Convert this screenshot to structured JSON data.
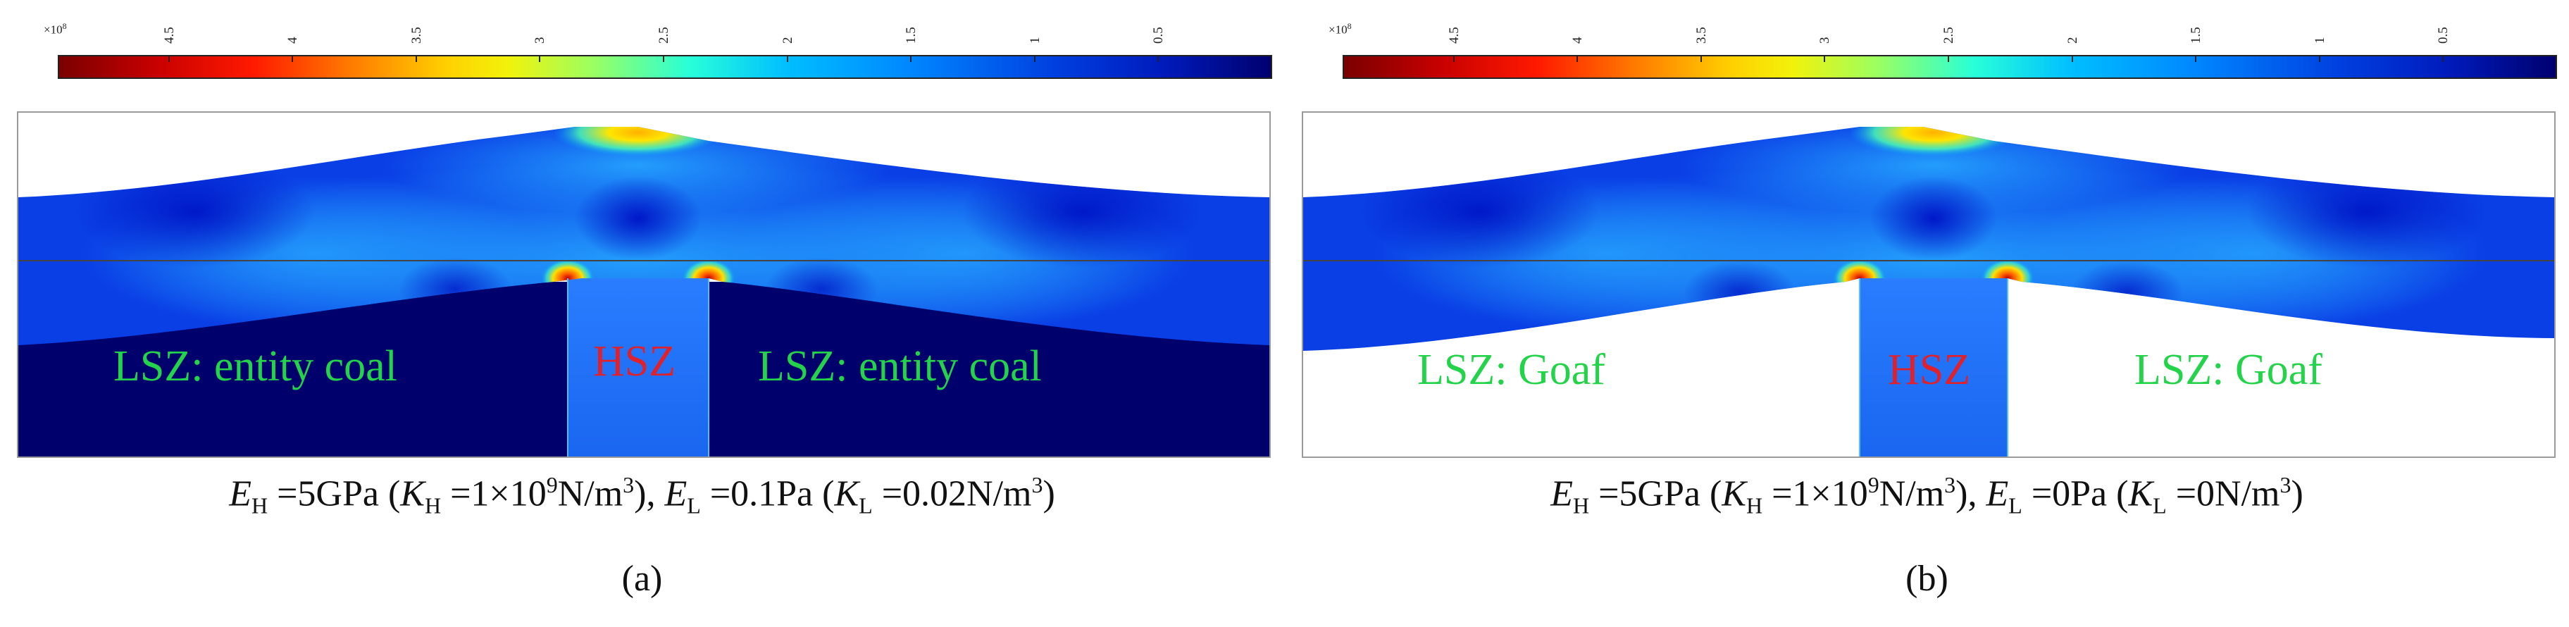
{
  "colorbar": {
    "exponent_base": "×10",
    "exponent_power": "8",
    "tick_labels": [
      "4.5",
      "4",
      "3.5",
      "3",
      "2.5",
      "2",
      "1.5",
      "1",
      "0.5"
    ],
    "tick_values": [
      4.5,
      4,
      3.5,
      3,
      2.5,
      2,
      1.5,
      1,
      0.5
    ],
    "range": [
      0.05,
      4.95
    ]
  },
  "panels": [
    {
      "id": "a",
      "left_zone": "LSZ: entity coal",
      "center_zone": "HSZ",
      "right_zone": "LSZ: entity coal",
      "caption": {
        "EH_sym": "E",
        "EH_sub": "H",
        "EH_val": " =5GPa (",
        "KH_sym": "K",
        "KH_sub": "H",
        "KH_val": " =1×10",
        "KH_exp": "9",
        "KH_unit": "N/m",
        "KH_unit_exp": "3",
        "KH_close": "), ",
        "EL_sym": "E",
        "EL_sub": "L",
        "EL_val": " =0.1Pa (",
        "KL_sym": "K",
        "KL_sub": "L",
        "KL_val": " =0.02N/m",
        "KL_exp": "3",
        "KL_close": ")"
      },
      "label": "(a)"
    },
    {
      "id": "b",
      "left_zone": "LSZ: Goaf",
      "center_zone": "HSZ",
      "right_zone": "LSZ: Goaf",
      "caption": {
        "EH_sym": "E",
        "EH_sub": "H",
        "EH_val": " =5GPa (",
        "KH_sym": "K",
        "KH_sub": "H",
        "KH_val": " =1×10",
        "KH_exp": "9",
        "KH_unit": "N/m",
        "KH_unit_exp": "3",
        "KH_close": "), ",
        "EL_sym": "E",
        "EL_sub": "L",
        "EL_val": " =0Pa (",
        "KL_sym": "K",
        "KL_sub": "L",
        "KL_val": " =0N/m",
        "KL_exp": "3",
        "KL_close": ")"
      },
      "label": "(b)"
    }
  ]
}
